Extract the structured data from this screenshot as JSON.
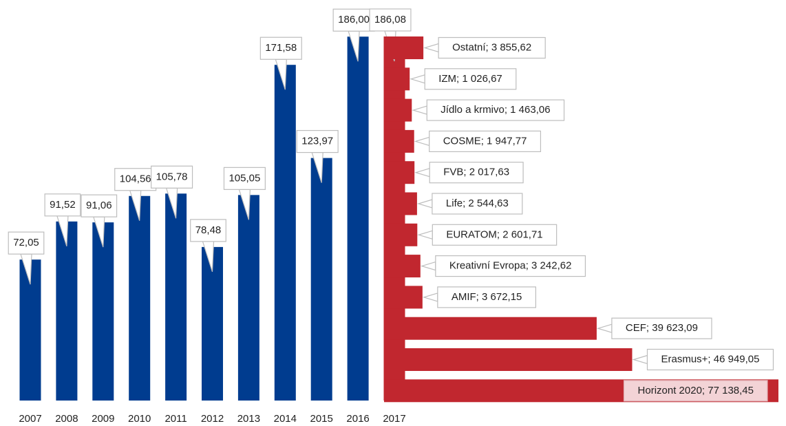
{
  "chart_data": [
    {
      "type": "bar",
      "categories": [
        "2007",
        "2008",
        "2009",
        "2010",
        "2011",
        "2012",
        "2013",
        "2014",
        "2015",
        "2016",
        "2017"
      ],
      "values": [
        72.05,
        91.52,
        91.06,
        104.56,
        105.78,
        78.48,
        105.05,
        171.58,
        123.97,
        186.0,
        186.08
      ],
      "value_labels": [
        "72,05",
        "91,52",
        "91,06",
        "104,56",
        "105,78",
        "78,48",
        "105,05",
        "171,58",
        "123,97",
        "186,00",
        "186,08"
      ],
      "colors": [
        "#003c8f",
        "#003c8f",
        "#003c8f",
        "#003c8f",
        "#003c8f",
        "#003c8f",
        "#003c8f",
        "#003c8f",
        "#003c8f",
        "#003c8f",
        "#c1272f"
      ]
    },
    {
      "type": "barh",
      "values": [
        3855.62,
        1026.67,
        1463.06,
        1947.77,
        2017.63,
        2544.63,
        2601.71,
        3242.62,
        3672.15,
        39623.09,
        46949.05,
        77138.45
      ],
      "value_labels": [
        "Ostatní; 3 855,62",
        "IZM; 1 026,67",
        "Jídlo a krmivo; 1 463,06",
        "COSME; 1 947,77",
        "FVB; 2 017,63",
        "Life; 2 544,63",
        "EURATOM; 2 601,71",
        "Kreativní Evropa; 3 242,62",
        "AMIF; 3 672,15",
        "CEF; 39 623,09",
        "Erasmus+; 46 949,05",
        "Horizont 2020; 77 138,45"
      ],
      "color": "#c1272f"
    }
  ]
}
